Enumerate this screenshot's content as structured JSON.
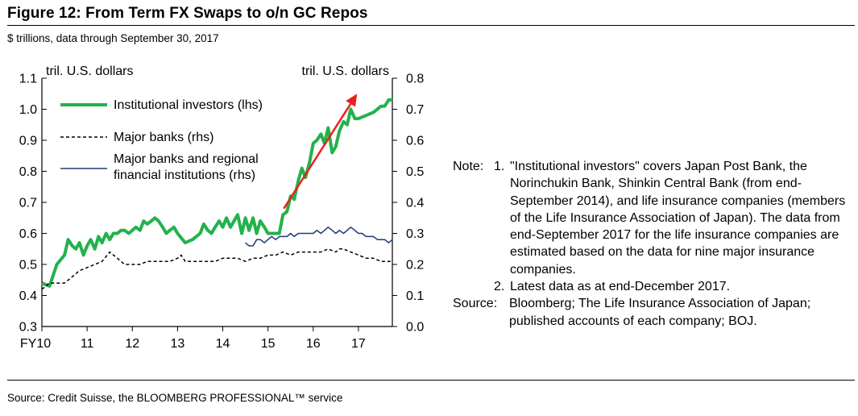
{
  "figure": {
    "title": "Figure 12: From Term FX Swaps to o/n GC Repos",
    "subtitle": "$ trillions, data through September 30, 2017",
    "source": "Source: Credit Suisse, the BLOOMBERG PROFESSIONAL™ service"
  },
  "note": {
    "label": "Note:",
    "items": [
      {
        "num": "1.",
        "text": "\"Institutional investors\" covers Japan Post Bank, the Norinchukin Bank, Shinkin Central Bank (from end-September 2014), and life insurance companies (members of the Life Insurance Association of Japan). The data from end-September 2017 for the life insurance companies are estimated based on the data for nine major insurance companies."
      },
      {
        "num": "2.",
        "text": "Latest data as at end-December 2017."
      }
    ],
    "source_label": "Source:",
    "source_text": "Bloomberg; The Life Insurance Association of Japan; published accounts of each company; BOJ."
  },
  "colors": {
    "institutional": "#22b24c",
    "major_banks": "#000000",
    "regional": "#1f3a78",
    "arrow": "#e8231f"
  },
  "chart_data": {
    "type": "line",
    "x_tick_labels": [
      "FY10",
      "11",
      "12",
      "13",
      "14",
      "15",
      "16",
      "17"
    ],
    "x_tick_values": [
      2010,
      2011,
      2012,
      2013,
      2014,
      2015,
      2016,
      2017
    ],
    "xlim": [
      2010,
      2017.75
    ],
    "ylabel_left": "tril. U.S. dollars",
    "ylabel_right": "tril. U.S. dollars",
    "ylim_left": [
      0.3,
      1.1
    ],
    "ylim_right": [
      0.0,
      0.8
    ],
    "yticks_left": [
      "0.3",
      "0.4",
      "0.5",
      "0.6",
      "0.7",
      "0.8",
      "0.9",
      "1.0",
      "1.1"
    ],
    "yticks_right": [
      "0.0",
      "0.1",
      "0.2",
      "0.3",
      "0.4",
      "0.5",
      "0.6",
      "0.7",
      "0.8"
    ],
    "legend": [
      "Institutional investors (lhs)",
      "Major banks (rhs)",
      "Major banks and regional financial institutions (rhs)"
    ],
    "series": [
      {
        "name": "Institutional investors (lhs)",
        "axis": "left",
        "style": "solid-thick",
        "x": [
          2010.0,
          2010.17,
          2010.33,
          2010.5,
          2010.58,
          2010.67,
          2010.75,
          2010.83,
          2010.92,
          2011.0,
          2011.08,
          2011.17,
          2011.25,
          2011.33,
          2011.42,
          2011.5,
          2011.58,
          2011.67,
          2011.75,
          2011.83,
          2011.92,
          2012.0,
          2012.08,
          2012.17,
          2012.25,
          2012.33,
          2012.42,
          2012.5,
          2012.58,
          2012.67,
          2012.75,
          2012.83,
          2012.92,
          2013.0,
          2013.17,
          2013.33,
          2013.5,
          2013.58,
          2013.67,
          2013.75,
          2013.83,
          2013.92,
          2014.0,
          2014.08,
          2014.17,
          2014.25,
          2014.33,
          2014.42,
          2014.5,
          2014.58,
          2014.67,
          2014.75,
          2014.83,
          2014.92,
          2015.0,
          2015.08,
          2015.17,
          2015.25,
          2015.33,
          2015.42,
          2015.5,
          2015.58,
          2015.67,
          2015.75,
          2015.83,
          2015.92,
          2016.0,
          2016.08,
          2016.17,
          2016.25,
          2016.33,
          2016.42,
          2016.5,
          2016.58,
          2016.67,
          2016.75,
          2016.83,
          2016.92,
          2017.0,
          2017.17,
          2017.33,
          2017.5,
          2017.58,
          2017.67,
          2017.75
        ],
        "values": [
          0.44,
          0.43,
          0.5,
          0.53,
          0.58,
          0.56,
          0.55,
          0.57,
          0.53,
          0.56,
          0.58,
          0.55,
          0.59,
          0.57,
          0.6,
          0.58,
          0.6,
          0.6,
          0.61,
          0.61,
          0.6,
          0.61,
          0.62,
          0.61,
          0.64,
          0.63,
          0.64,
          0.65,
          0.64,
          0.62,
          0.6,
          0.61,
          0.62,
          0.6,
          0.57,
          0.58,
          0.6,
          0.63,
          0.61,
          0.6,
          0.62,
          0.64,
          0.62,
          0.65,
          0.62,
          0.64,
          0.66,
          0.6,
          0.65,
          0.61,
          0.65,
          0.6,
          0.64,
          0.62,
          0.6,
          0.6,
          0.6,
          0.6,
          0.66,
          0.67,
          0.72,
          0.71,
          0.77,
          0.81,
          0.78,
          0.83,
          0.89,
          0.9,
          0.92,
          0.89,
          0.94,
          0.86,
          0.88,
          0.93,
          0.96,
          0.95,
          1.0,
          0.97,
          0.97,
          0.98,
          0.99,
          1.01,
          1.01,
          1.03,
          1.03
        ]
      },
      {
        "name": "Major banks (rhs)",
        "axis": "right",
        "style": "dashed",
        "x": [
          2010.0,
          2010.17,
          2010.33,
          2010.5,
          2010.67,
          2010.83,
          2011.0,
          2011.17,
          2011.33,
          2011.5,
          2011.67,
          2011.83,
          2012.0,
          2012.17,
          2012.33,
          2012.5,
          2012.67,
          2012.83,
          2013.0,
          2013.08,
          2013.17,
          2013.33,
          2013.5,
          2013.67,
          2013.83,
          2014.0,
          2014.17,
          2014.33,
          2014.5,
          2014.67,
          2014.83,
          2015.0,
          2015.17,
          2015.33,
          2015.5,
          2015.67,
          2015.83,
          2016.0,
          2016.17,
          2016.33,
          2016.5,
          2016.58,
          2016.67,
          2016.83,
          2017.0,
          2017.17,
          2017.33,
          2017.5,
          2017.58,
          2017.67,
          2017.75
        ],
        "values": [
          0.12,
          0.14,
          0.14,
          0.14,
          0.16,
          0.18,
          0.19,
          0.2,
          0.21,
          0.24,
          0.22,
          0.2,
          0.2,
          0.2,
          0.21,
          0.21,
          0.21,
          0.21,
          0.22,
          0.23,
          0.21,
          0.21,
          0.21,
          0.21,
          0.21,
          0.22,
          0.22,
          0.22,
          0.21,
          0.22,
          0.22,
          0.23,
          0.23,
          0.24,
          0.23,
          0.24,
          0.24,
          0.24,
          0.24,
          0.25,
          0.24,
          0.25,
          0.25,
          0.24,
          0.23,
          0.22,
          0.22,
          0.21,
          0.21,
          0.21,
          0.21
        ]
      },
      {
        "name": "Major banks and regional financial institutions (rhs)",
        "axis": "right",
        "style": "solid-thin",
        "x": [
          2014.5,
          2014.58,
          2014.67,
          2014.75,
          2014.83,
          2014.92,
          2015.0,
          2015.08,
          2015.17,
          2015.25,
          2015.33,
          2015.42,
          2015.5,
          2015.58,
          2015.67,
          2015.75,
          2015.83,
          2015.92,
          2016.0,
          2016.08,
          2016.17,
          2016.25,
          2016.33,
          2016.42,
          2016.5,
          2016.58,
          2016.67,
          2016.75,
          2016.83,
          2016.92,
          2017.0,
          2017.08,
          2017.17,
          2017.25,
          2017.33,
          2017.42,
          2017.5,
          2017.58,
          2017.67,
          2017.75
        ],
        "values": [
          0.27,
          0.26,
          0.26,
          0.28,
          0.28,
          0.27,
          0.28,
          0.29,
          0.28,
          0.29,
          0.29,
          0.29,
          0.3,
          0.29,
          0.3,
          0.3,
          0.3,
          0.3,
          0.3,
          0.31,
          0.3,
          0.31,
          0.32,
          0.31,
          0.3,
          0.31,
          0.3,
          0.31,
          0.32,
          0.31,
          0.3,
          0.3,
          0.29,
          0.29,
          0.29,
          0.28,
          0.28,
          0.28,
          0.27,
          0.28
        ]
      }
    ],
    "annotation": {
      "type": "arrow",
      "axis": "left",
      "from": [
        2015.35,
        0.68
      ],
      "to": [
        2016.97,
        1.05
      ]
    }
  }
}
